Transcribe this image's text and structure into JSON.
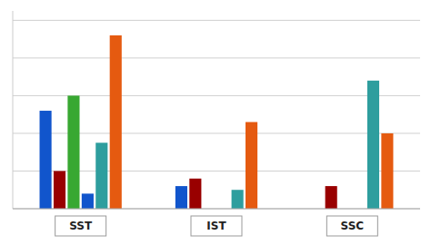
{
  "chart_data": {
    "type": "bar",
    "categories": [
      "SST",
      "IST",
      "SSC"
    ],
    "series": [
      {
        "color": "#1155cc",
        "values": [
          52,
          12,
          0
        ]
      },
      {
        "color": "#990000",
        "values": [
          20,
          16,
          12
        ]
      },
      {
        "color": "#38a832",
        "values": [
          60,
          0,
          0
        ]
      },
      {
        "color": "#1155cc",
        "values": [
          8,
          0,
          0
        ]
      },
      {
        "color": "#2e9e9e",
        "values": [
          35,
          10,
          68
        ]
      },
      {
        "color": "#e55a10",
        "values": [
          92,
          46,
          40
        ]
      }
    ],
    "ylim": [
      0,
      105
    ],
    "yticks": [
      0,
      20,
      40,
      60,
      80,
      100
    ],
    "grid": true,
    "tick_labels": "x"
  }
}
